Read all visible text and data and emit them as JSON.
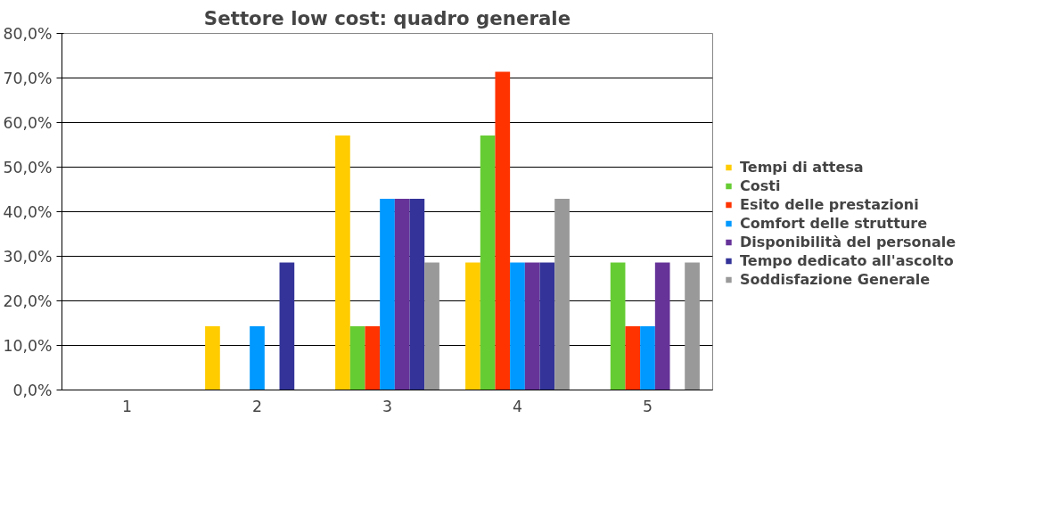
{
  "chart_data": {
    "type": "bar",
    "title": "Settore low cost: quadro generale",
    "categories": [
      "1",
      "2",
      "3",
      "4",
      "5"
    ],
    "series": [
      {
        "name": "Tempi di attesa",
        "color": "#ffcc00",
        "values": [
          0,
          14.3,
          57.1,
          28.6,
          0
        ]
      },
      {
        "name": "Costi",
        "color": "#66cc33",
        "values": [
          0,
          0,
          14.3,
          57.1,
          28.6
        ]
      },
      {
        "name": "Esito delle prestazioni",
        "color": "#ff3300",
        "values": [
          0,
          0,
          14.3,
          71.4,
          14.3
        ]
      },
      {
        "name": "Comfort delle strutture",
        "color": "#0099ff",
        "values": [
          0,
          14.3,
          42.9,
          28.6,
          14.3
        ]
      },
      {
        "name": "Disponibilità del personale",
        "color": "#663399",
        "values": [
          0,
          0,
          42.9,
          28.6,
          28.6
        ]
      },
      {
        "name": "Tempo dedicato all'ascolto",
        "color": "#333399",
        "values": [
          0,
          28.6,
          42.9,
          28.6,
          0
        ]
      },
      {
        "name": "Soddisfazione Generale",
        "color": "#999999",
        "values": [
          0,
          0,
          28.6,
          42.9,
          28.6
        ]
      }
    ],
    "ylim": [
      0,
      80
    ],
    "yticks": [
      {
        "value": 0,
        "label": "0,0%"
      },
      {
        "value": 10,
        "label": "10,0%"
      },
      {
        "value": 20,
        "label": "20,0%"
      },
      {
        "value": 30,
        "label": "30,0%"
      },
      {
        "value": 40,
        "label": "40,0%"
      },
      {
        "value": 50,
        "label": "50,0%"
      },
      {
        "value": 60,
        "label": "60,0%"
      },
      {
        "value": 70,
        "label": "70,0%"
      },
      {
        "value": 80,
        "label": "80,0%"
      }
    ],
    "grid": "y",
    "legend": "right"
  }
}
